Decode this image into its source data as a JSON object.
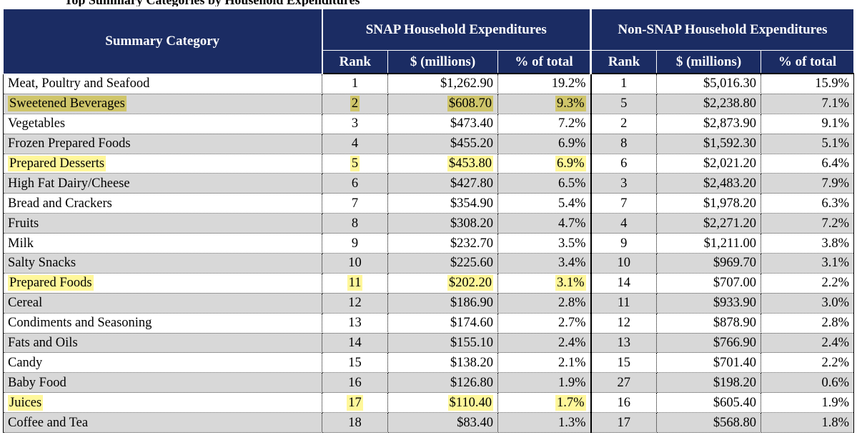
{
  "caption": "Top Summary Categories by Household Expenditures",
  "header": {
    "category": "Summary Category",
    "snap_group": "SNAP Household Expenditures",
    "nonsnap_group": "Non-SNAP Household Expenditures",
    "rank": "Rank",
    "millions": "$ (millions)",
    "pct": "% of total"
  },
  "rows": [
    {
      "cat": "Meat, Poultry and Seafood",
      "r1": "1",
      "d1": "$1,262.90",
      "p1": "19.2%",
      "r2": "1",
      "d2": "$5,016.30",
      "p2": "15.9%",
      "hl": false
    },
    {
      "cat": "Sweetened Beverages",
      "r1": "2",
      "d1": "$608.70",
      "p1": "9.3%",
      "r2": "5",
      "d2": "$2,238.80",
      "p2": "7.1%",
      "hl": true
    },
    {
      "cat": "Vegetables",
      "r1": "3",
      "d1": "$473.40",
      "p1": "7.2%",
      "r2": "2",
      "d2": "$2,873.90",
      "p2": "9.1%",
      "hl": false
    },
    {
      "cat": "Frozen Prepared Foods",
      "r1": "4",
      "d1": "$455.20",
      "p1": "6.9%",
      "r2": "8",
      "d2": "$1,592.30",
      "p2": "5.1%",
      "hl": false
    },
    {
      "cat": "Prepared Desserts",
      "r1": "5",
      "d1": "$453.80",
      "p1": "6.9%",
      "r2": "6",
      "d2": "$2,021.20",
      "p2": "6.4%",
      "hl": true
    },
    {
      "cat": "High Fat Dairy/Cheese",
      "r1": "6",
      "d1": "$427.80",
      "p1": "6.5%",
      "r2": "3",
      "d2": "$2,483.20",
      "p2": "7.9%",
      "hl": false
    },
    {
      "cat": "Bread and Crackers",
      "r1": "7",
      "d1": "$354.90",
      "p1": "5.4%",
      "r2": "7",
      "d2": "$1,978.20",
      "p2": "6.3%",
      "hl": false
    },
    {
      "cat": "Fruits",
      "r1": "8",
      "d1": "$308.20",
      "p1": "4.7%",
      "r2": "4",
      "d2": "$2,271.20",
      "p2": "7.2%",
      "hl": false
    },
    {
      "cat": "Milk",
      "r1": "9",
      "d1": "$232.70",
      "p1": "3.5%",
      "r2": "9",
      "d2": "$1,211.00",
      "p2": "3.8%",
      "hl": false
    },
    {
      "cat": "Salty Snacks",
      "r1": "10",
      "d1": "$225.60",
      "p1": "3.4%",
      "r2": "10",
      "d2": "$969.70",
      "p2": "3.1%",
      "hl": false
    },
    {
      "cat": "Prepared Foods",
      "r1": "11",
      "d1": "$202.20",
      "p1": "3.1%",
      "r2": "14",
      "d2": "$707.00",
      "p2": "2.2%",
      "hl": true
    },
    {
      "cat": "Cereal",
      "r1": "12",
      "d1": "$186.90",
      "p1": "2.8%",
      "r2": "11",
      "d2": "$933.90",
      "p2": "3.0%",
      "hl": false
    },
    {
      "cat": "Condiments and Seasoning",
      "r1": "13",
      "d1": "$174.60",
      "p1": "2.7%",
      "r2": "12",
      "d2": "$878.90",
      "p2": "2.8%",
      "hl": false
    },
    {
      "cat": "Fats and Oils",
      "r1": "14",
      "d1": "$155.10",
      "p1": "2.4%",
      "r2": "13",
      "d2": "$766.90",
      "p2": "2.4%",
      "hl": false
    },
    {
      "cat": "Candy",
      "r1": "15",
      "d1": "$138.20",
      "p1": "2.1%",
      "r2": "15",
      "d2": "$701.40",
      "p2": "2.2%",
      "hl": false
    },
    {
      "cat": "Baby Food",
      "r1": "16",
      "d1": "$126.80",
      "p1": "1.9%",
      "r2": "27",
      "d2": "$198.20",
      "p2": "0.6%",
      "hl": false
    },
    {
      "cat": "Juices",
      "r1": "17",
      "d1": "$110.40",
      "p1": "1.7%",
      "r2": "16",
      "d2": "$605.40",
      "p2": "1.9%",
      "hl": true
    },
    {
      "cat": "Coffee and Tea",
      "r1": "18",
      "d1": "$83.40",
      "p1": "1.3%",
      "r2": "17",
      "d2": "$568.80",
      "p2": "1.8%",
      "hl": false
    }
  ],
  "colors": {
    "header_bg": "#1b2c63",
    "row_shade": "#d8d8d8",
    "highlight": "#fff79a"
  }
}
